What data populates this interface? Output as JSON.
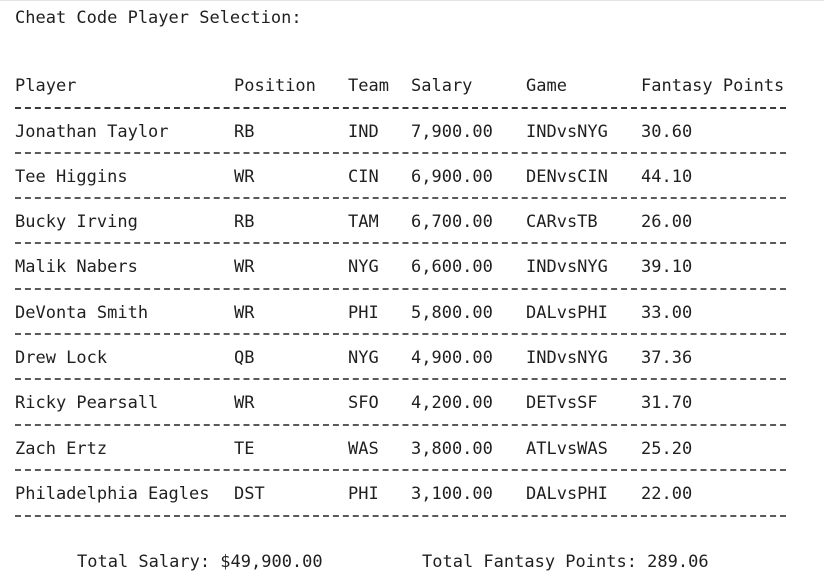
{
  "title": "Cheat Code Player Selection:",
  "columns": [
    "Player",
    "Position",
    "Team",
    "Salary",
    "Game",
    "Fantasy Points"
  ],
  "rows": [
    {
      "player": "Jonathan Taylor",
      "position": "RB",
      "team": "IND",
      "salary": "7,900.00",
      "game": "INDvsNYG",
      "points": "30.60"
    },
    {
      "player": "Tee Higgins",
      "position": "WR",
      "team": "CIN",
      "salary": "6,900.00",
      "game": "DENvsCIN",
      "points": "44.10"
    },
    {
      "player": "Bucky Irving",
      "position": "RB",
      "team": "TAM",
      "salary": "6,700.00",
      "game": "CARvsTB",
      "points": "26.00"
    },
    {
      "player": "Malik Nabers",
      "position": "WR",
      "team": "NYG",
      "salary": "6,600.00",
      "game": "INDvsNYG",
      "points": "39.10"
    },
    {
      "player": "DeVonta Smith",
      "position": "WR",
      "team": "PHI",
      "salary": "5,800.00",
      "game": "DALvsPHI",
      "points": "33.00"
    },
    {
      "player": "Drew Lock",
      "position": "QB",
      "team": "NYG",
      "salary": "4,900.00",
      "game": "INDvsNYG",
      "points": "37.36"
    },
    {
      "player": "Ricky Pearsall",
      "position": "WR",
      "team": "SFO",
      "salary": "4,200.00",
      "game": "DETvsSF",
      "points": "31.70"
    },
    {
      "player": "Zach Ertz",
      "position": "TE",
      "team": "WAS",
      "salary": "3,800.00",
      "game": "ATLvsWAS",
      "points": "25.20"
    },
    {
      "player": "Philadelphia Eagles",
      "position": "DST",
      "team": "PHI",
      "salary": "3,100.00",
      "game": "DALvsPHI",
      "points": "22.00"
    }
  ],
  "totals": {
    "salary": "Total Salary: $49,900.00",
    "points": "Total Fantasy Points: 289.06"
  }
}
